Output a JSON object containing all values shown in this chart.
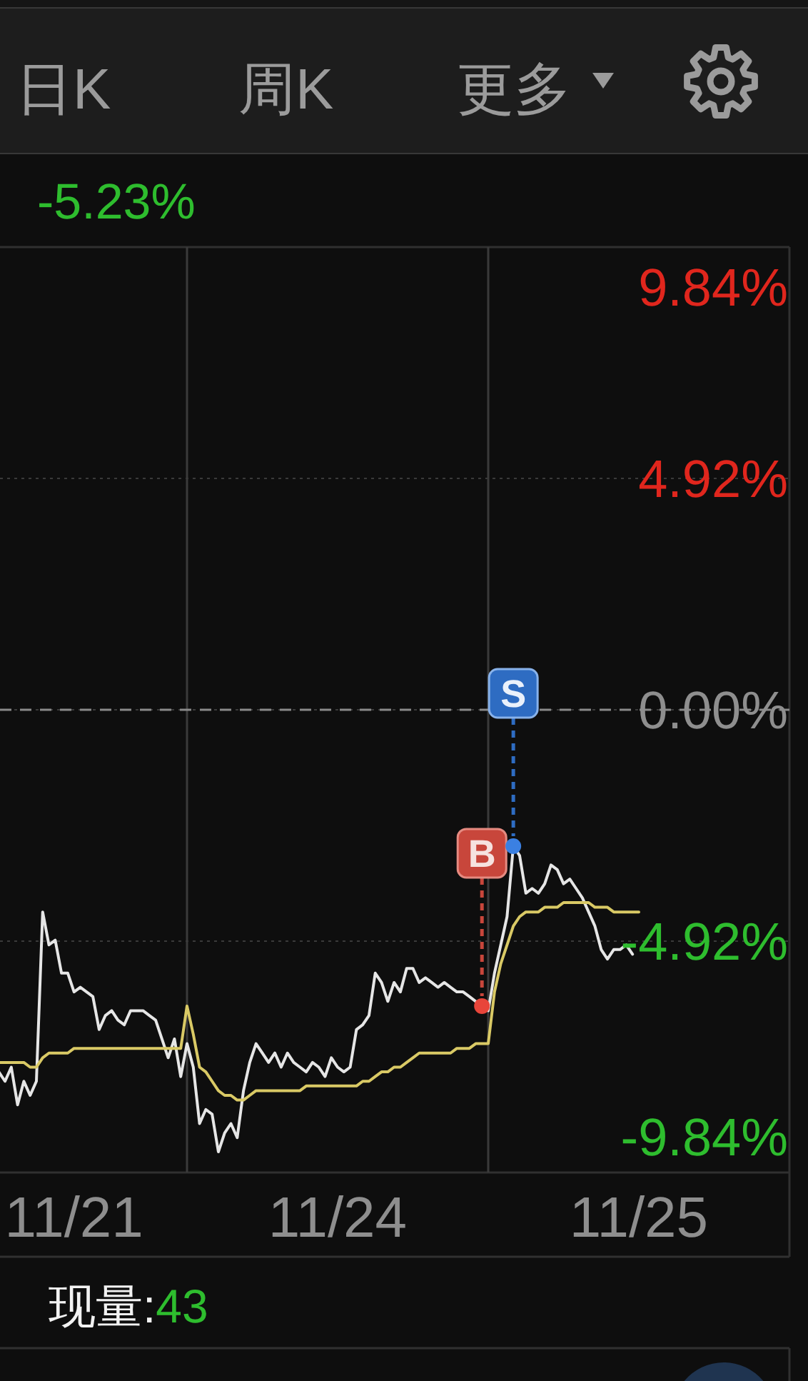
{
  "chart_data": {
    "type": "line",
    "categories": [
      null,
      null,
      null,
      null,
      null,
      null,
      null,
      null,
      null,
      null,
      null,
      null,
      "11/21",
      null,
      null,
      null,
      null,
      null,
      null,
      null,
      null,
      null,
      null,
      null,
      null,
      null,
      null,
      null,
      null,
      null,
      null,
      null,
      null,
      null,
      null,
      null,
      null,
      null,
      null,
      null,
      null,
      null,
      null,
      null,
      null,
      null,
      null,
      null,
      null,
      null,
      null,
      null,
      null,
      null,
      "11/24",
      null,
      null,
      null,
      null,
      null,
      null,
      null,
      null,
      null,
      null,
      null,
      null,
      null,
      null,
      null,
      null,
      null,
      null,
      null,
      null,
      null,
      null,
      null,
      null,
      null,
      null,
      null,
      null,
      null,
      null,
      null,
      null,
      null,
      null,
      null,
      null,
      null,
      null,
      null,
      null,
      null,
      null,
      null,
      null,
      null,
      null,
      null,
      "11/25",
      null,
      null,
      null,
      null,
      null,
      null,
      null,
      null,
      null,
      null,
      null,
      null,
      null,
      null,
      null,
      null,
      null,
      null,
      null,
      null,
      null,
      null,
      null,
      null
    ],
    "ylim": [
      -9.84,
      9.84
    ],
    "yticks": [
      {
        "value": 9.84,
        "label": "9.84%"
      },
      {
        "value": 4.92,
        "label": "4.92%"
      },
      {
        "value": 0,
        "label": "0.00%"
      },
      {
        "value": -4.92,
        "label": "-4.92%"
      },
      {
        "value": -9.84,
        "label": "-9.84%"
      }
    ],
    "grid": true,
    "ref_lines": [
      {
        "axis": "y",
        "value": 0,
        "color": "#8a8a8a",
        "line_style": "dashed"
      }
    ],
    "series": [
      {
        "color": "#e6e6e6",
        "values": [
          -7.7,
          -7.9,
          -7.6,
          -8.4,
          -7.9,
          -8.2,
          -7.9,
          -4.3,
          -5.0,
          -4.9,
          -5.6,
          -5.6,
          -6.0,
          -5.9,
          -6.0,
          -6.1,
          -6.8,
          -6.5,
          -6.4,
          -6.6,
          -6.7,
          -6.4,
          -6.4,
          -6.4,
          -6.5,
          -6.6,
          -7.0,
          -7.4,
          -7.0,
          -7.8,
          -7.1,
          -7.6,
          -8.8,
          -8.5,
          -8.6,
          -9.4,
          -9.0,
          -8.8,
          -9.1,
          -8.1,
          -7.5,
          -7.1,
          -7.3,
          -7.5,
          -7.3,
          -7.6,
          -7.3,
          -7.5,
          -7.6,
          -7.7,
          -7.5,
          -7.6,
          -7.8,
          -7.4,
          -7.6,
          -7.7,
          -7.6,
          -6.8,
          -6.7,
          -6.5,
          -5.6,
          -5.8,
          -6.2,
          -5.8,
          -6.0,
          -5.5,
          -5.5,
          -5.8,
          -5.7,
          -5.8,
          -5.9,
          -5.8,
          -5.9,
          -6.0,
          -6.0,
          -6.1,
          -6.2,
          -6.3,
          -6.4,
          -5.6,
          -5.0,
          -4.4,
          -2.9,
          -3.1,
          -3.9,
          -3.8,
          -3.9,
          -3.7,
          -3.3,
          -3.4,
          -3.7,
          -3.6,
          -3.8,
          -4.0,
          -4.3,
          -4.6,
          -5.1,
          -5.3,
          -5.1,
          -5.1,
          -5.0,
          -5.2,
          null,
          null,
          null,
          null,
          null,
          null,
          null,
          null,
          null,
          null,
          null,
          null,
          null,
          null,
          null,
          null,
          null,
          null,
          null,
          null,
          null,
          null,
          null,
          null,
          null
        ]
      },
      {
        "color": "#d9c965",
        "values": [
          -7.5,
          -7.5,
          -7.5,
          -7.5,
          -7.5,
          -7.6,
          -7.6,
          -7.4,
          -7.3,
          -7.3,
          -7.3,
          -7.3,
          -7.2,
          -7.2,
          -7.2,
          -7.2,
          -7.2,
          -7.2,
          -7.2,
          -7.2,
          -7.2,
          -7.2,
          -7.2,
          -7.2,
          -7.2,
          -7.2,
          -7.2,
          -7.2,
          -7.2,
          -7.2,
          -6.3,
          -6.9,
          -7.6,
          -7.7,
          -7.9,
          -8.1,
          -8.2,
          -8.2,
          -8.3,
          -8.3,
          -8.2,
          -8.1,
          -8.1,
          -8.1,
          -8.1,
          -8.1,
          -8.1,
          -8.1,
          -8.1,
          -8.0,
          -8.0,
          -8.0,
          -8.0,
          -8.0,
          -8.0,
          -8.0,
          -8.0,
          -8.0,
          -7.9,
          -7.9,
          -7.8,
          -7.7,
          -7.7,
          -7.6,
          -7.6,
          -7.5,
          -7.4,
          -7.3,
          -7.3,
          -7.3,
          -7.3,
          -7.3,
          -7.3,
          -7.2,
          -7.2,
          -7.2,
          -7.1,
          -7.1,
          -7.1,
          -6.0,
          -5.4,
          -5.0,
          -4.6,
          -4.4,
          -4.3,
          -4.3,
          -4.3,
          -4.2,
          -4.2,
          -4.2,
          -4.1,
          -4.1,
          -4.1,
          -4.1,
          -4.1,
          -4.2,
          -4.2,
          -4.2,
          -4.3,
          -4.3,
          -4.3,
          -4.3,
          -4.3,
          null,
          null,
          null,
          null,
          null,
          null,
          null,
          null,
          null,
          null,
          null,
          null,
          null,
          null,
          null,
          null,
          null,
          null,
          null,
          null,
          null,
          null,
          null,
          null
        ]
      },
      {
        "type": "scatter",
        "name": "B",
        "color": "#e8453a",
        "values": [
          null,
          null,
          null,
          null,
          null,
          null,
          null,
          null,
          null,
          null,
          null,
          null,
          null,
          null,
          null,
          null,
          null,
          null,
          null,
          null,
          null,
          null,
          null,
          null,
          null,
          null,
          null,
          null,
          null,
          null,
          null,
          null,
          null,
          null,
          null,
          null,
          null,
          null,
          null,
          null,
          null,
          null,
          null,
          null,
          null,
          null,
          null,
          null,
          null,
          null,
          null,
          null,
          null,
          null,
          null,
          null,
          null,
          null,
          null,
          null,
          null,
          null,
          null,
          null,
          null,
          null,
          null,
          null,
          null,
          null,
          null,
          null,
          null,
          null,
          null,
          null,
          null,
          -6.3,
          null,
          null,
          null,
          null,
          null,
          null,
          null,
          null,
          null,
          null,
          null,
          null,
          null,
          null,
          null,
          null,
          null,
          null,
          null,
          null,
          null,
          null,
          null,
          null,
          null,
          null,
          null,
          null,
          null,
          null,
          null,
          null,
          null,
          null,
          null,
          null,
          null,
          null,
          null,
          null,
          null,
          null,
          null,
          null,
          null,
          null,
          null,
          null,
          null
        ]
      },
      {
        "type": "scatter",
        "name": "S",
        "color": "#3b80e2",
        "values": [
          null,
          null,
          null,
          null,
          null,
          null,
          null,
          null,
          null,
          null,
          null,
          null,
          null,
          null,
          null,
          null,
          null,
          null,
          null,
          null,
          null,
          null,
          null,
          null,
          null,
          null,
          null,
          null,
          null,
          null,
          null,
          null,
          null,
          null,
          null,
          null,
          null,
          null,
          null,
          null,
          null,
          null,
          null,
          null,
          null,
          null,
          null,
          null,
          null,
          null,
          null,
          null,
          null,
          null,
          null,
          null,
          null,
          null,
          null,
          null,
          null,
          null,
          null,
          null,
          null,
          null,
          null,
          null,
          null,
          null,
          null,
          null,
          null,
          null,
          null,
          null,
          null,
          null,
          null,
          null,
          null,
          null,
          -2.9,
          null,
          null,
          null,
          null,
          null,
          null,
          null,
          null,
          null,
          null,
          null,
          null,
          null,
          null,
          null,
          null,
          null,
          null,
          null,
          null,
          null,
          null,
          null,
          null,
          null,
          null,
          null,
          null,
          null,
          null,
          null,
          null,
          null,
          null,
          null,
          null,
          null,
          null,
          null,
          null,
          null,
          null,
          null,
          null
        ]
      }
    ],
    "annotations": [
      "日K",
      "周K",
      "更多",
      "-5.23%",
      "现量:43"
    ]
  }
}
